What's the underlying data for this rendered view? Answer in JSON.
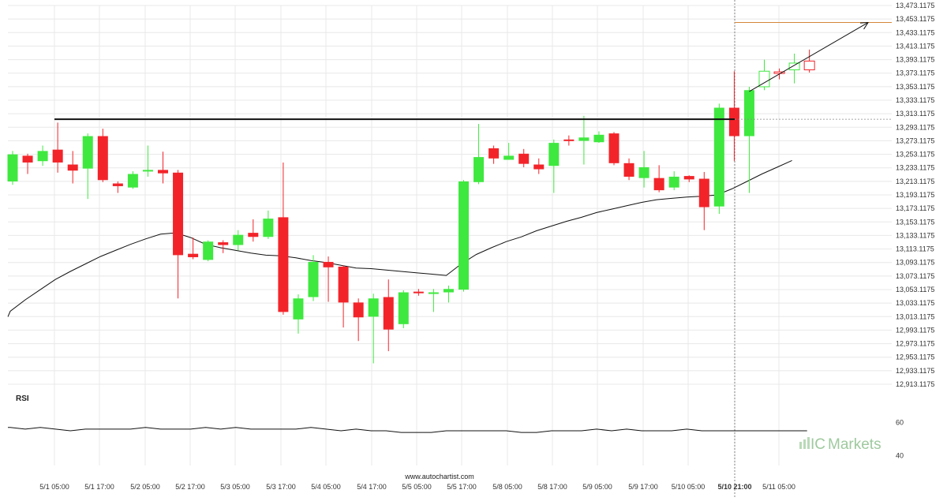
{
  "chart_data": {
    "type": "candlestick",
    "y_axis_labels": [
      "13,473.1175",
      "13,453.1175",
      "13,433.1175",
      "13,413.1175",
      "13,393.1175",
      "13,373.1175",
      "13,353.1175",
      "13,333.1175",
      "13,313.1175",
      "13,293.1175",
      "13,273.1175",
      "13,253.1175",
      "13,233.1175",
      "13,213.1175",
      "13,193.1175",
      "13,173.1175",
      "13,153.1175",
      "13,133.1175",
      "13,113.1175",
      "13,093.1175",
      "13,073.1175",
      "13,053.1175",
      "13,033.1175",
      "13,013.1175",
      "12,993.1175",
      "12,973.1175",
      "12,953.1175",
      "12,933.1175",
      "12,913.1175"
    ],
    "ylim": [
      12913.1175,
      13473.1175
    ],
    "x_axis_labels": [
      "5/1 05:00",
      "5/1 17:00",
      "5/2 05:00",
      "5/2 17:00",
      "5/3 05:00",
      "5/3 17:00",
      "5/4 05:00",
      "5/4 17:00",
      "5/5 05:00",
      "5/5 17:00",
      "5/8 05:00",
      "5/8 17:00",
      "5/9 05:00",
      "5/9 17:00",
      "5/10 05:00",
      "5/10 21:00",
      "5/11 05:00"
    ],
    "highlighted_x_label": "5/10 21:00",
    "candles": [
      {
        "o": 13213,
        "c": 13253,
        "h": 13258,
        "l": 13208
      },
      {
        "o": 13251,
        "c": 13241,
        "h": 13254,
        "l": 13224
      },
      {
        "o": 13243,
        "c": 13258,
        "h": 13266,
        "l": 13236
      },
      {
        "o": 13260,
        "c": 13241,
        "h": 13300,
        "l": 13226
      },
      {
        "o": 13238,
        "c": 13229,
        "h": 13258,
        "l": 13210
      },
      {
        "o": 13232,
        "c": 13280,
        "h": 13284,
        "l": 13187
      },
      {
        "o": 13280,
        "c": 13215,
        "h": 13291,
        "l": 13212
      },
      {
        "o": 13210,
        "c": 13206,
        "h": 13213,
        "l": 13196
      },
      {
        "o": 13204,
        "c": 13224,
        "h": 13228,
        "l": 13202
      },
      {
        "o": 13228,
        "c": 13230,
        "h": 13266,
        "l": 13220
      },
      {
        "o": 13230,
        "c": 13225,
        "h": 13257,
        "l": 13210
      },
      {
        "o": 13226,
        "c": 13104,
        "h": 13230,
        "l": 13040
      },
      {
        "o": 13106,
        "c": 13101,
        "h": 13130,
        "l": 13098
      },
      {
        "o": 13097,
        "c": 13124,
        "h": 13126,
        "l": 13095
      },
      {
        "o": 13123,
        "c": 13119,
        "h": 13126,
        "l": 13107
      },
      {
        "o": 13119,
        "c": 13134,
        "h": 13141,
        "l": 13111
      },
      {
        "o": 13137,
        "c": 13131,
        "h": 13157,
        "l": 13124
      },
      {
        "o": 13131,
        "c": 13158,
        "h": 13170,
        "l": 13128
      },
      {
        "o": 13160,
        "c": 13020,
        "h": 13241,
        "l": 13016
      },
      {
        "o": 13009,
        "c": 13040,
        "h": 13046,
        "l": 12988
      },
      {
        "o": 13042,
        "c": 13094,
        "h": 13104,
        "l": 13036
      },
      {
        "o": 13094,
        "c": 13086,
        "h": 13102,
        "l": 13035
      },
      {
        "o": 13087,
        "c": 13034,
        "h": 13089,
        "l": 12997
      },
      {
        "o": 13034,
        "c": 13012,
        "h": 13040,
        "l": 12977
      },
      {
        "o": 13013,
        "c": 13040,
        "h": 13047,
        "l": 12944
      },
      {
        "o": 13042,
        "c": 12994,
        "h": 13068,
        "l": 12962
      },
      {
        "o": 13002,
        "c": 13049,
        "h": 13052,
        "l": 12996
      },
      {
        "o": 13050,
        "c": 13049,
        "h": 13054,
        "l": 13044
      },
      {
        "o": 13049,
        "c": 13049,
        "h": 13054,
        "l": 13020
      },
      {
        "o": 13049,
        "c": 13054,
        "h": 13059,
        "l": 13034
      },
      {
        "o": 13053,
        "c": 13213,
        "h": 13215,
        "l": 13050
      },
      {
        "o": 13212,
        "c": 13249,
        "h": 13298,
        "l": 13209
      },
      {
        "o": 13262,
        "c": 13247,
        "h": 13266,
        "l": 13239
      },
      {
        "o": 13245,
        "c": 13251,
        "h": 13270,
        "l": 13245
      },
      {
        "o": 13254,
        "c": 13239,
        "h": 13261,
        "l": 13234
      },
      {
        "o": 13238,
        "c": 13231,
        "h": 13247,
        "l": 13224
      },
      {
        "o": 13236,
        "c": 13270,
        "h": 13275,
        "l": 13196
      },
      {
        "o": 13275,
        "c": 13273,
        "h": 13281,
        "l": 13266
      },
      {
        "o": 13273,
        "c": 13278,
        "h": 13310,
        "l": 13238
      },
      {
        "o": 13271,
        "c": 13282,
        "h": 13287,
        "l": 13270
      },
      {
        "o": 13284,
        "c": 13240,
        "h": 13286,
        "l": 13237
      },
      {
        "o": 13240,
        "c": 13220,
        "h": 13247,
        "l": 13215
      },
      {
        "o": 13218,
        "c": 13234,
        "h": 13258,
        "l": 13204
      },
      {
        "o": 13218,
        "c": 13200,
        "h": 13237,
        "l": 13197
      },
      {
        "o": 13204,
        "c": 13220,
        "h": 13228,
        "l": 13200
      },
      {
        "o": 13221,
        "c": 13216,
        "h": 13222,
        "l": 13212
      },
      {
        "o": 13217,
        "c": 13175,
        "h": 13227,
        "l": 13141
      },
      {
        "o": 13176,
        "c": 13322,
        "h": 13328,
        "l": 13165
      },
      {
        "o": 13322,
        "c": 13280,
        "h": 13376,
        "l": 13243
      },
      {
        "o": 13280,
        "c": 13348,
        "h": 13353,
        "l": 13196
      },
      {
        "o": 13353,
        "c": 13376,
        "h": 13393,
        "l": 13348
      },
      {
        "o": 13375,
        "c": 13374,
        "h": 13380,
        "l": 13364
      },
      {
        "o": 13378,
        "c": 13388,
        "h": 13402,
        "l": 13358
      },
      {
        "o": 13391,
        "c": 13378,
        "h": 13408,
        "l": 13374
      }
    ],
    "moving_average": [
      13021,
      13038,
      13053,
      13068,
      13080,
      13091,
      13102,
      13111,
      13120,
      13128,
      13135,
      13137,
      13130,
      13120,
      13115,
      13111,
      13107,
      13104,
      13103,
      13100,
      13096,
      13093,
      13089,
      13085,
      13084,
      13082,
      13080,
      13078,
      13076,
      13074,
      13091,
      13105,
      13115,
      13124,
      13131,
      13140,
      13147,
      13154,
      13160,
      13167,
      13172,
      13177,
      13182,
      13186,
      13188,
      13190,
      13191,
      13193,
      13202,
      13213,
      13224,
      13234,
      13244
    ],
    "resistance_level": 13305,
    "target_level": 13448,
    "projection_line": {
      "from_index": 49,
      "from_value": 13346,
      "to_index": 54,
      "to_value": 13448
    },
    "rsi": {
      "label": "RSI",
      "y_axis_labels": [
        "60",
        "40"
      ],
      "ylim": [
        35,
        65
      ],
      "values": [
        57,
        56,
        57,
        56,
        55,
        56,
        56,
        56,
        56,
        57,
        56,
        56,
        56,
        57,
        56,
        57,
        56,
        56,
        56,
        56,
        57,
        56,
        55,
        56,
        55,
        55,
        54,
        54,
        54,
        55,
        55,
        55,
        55,
        55,
        54,
        54,
        55,
        55,
        55,
        56,
        55,
        56,
        55,
        55,
        55,
        56,
        55,
        55,
        55,
        55,
        55,
        55,
        55,
        55
      ]
    }
  },
  "source": "www.autochartist.com",
  "brand": {
    "prefix": "IC",
    "name": "Markets"
  },
  "colors": {
    "bull": "#3fe83f",
    "bear": "#f2242a",
    "target_line": "#d4883a",
    "resistance_line": "#111111",
    "ma_line": "#111111",
    "grid": "#e8e8e8"
  }
}
